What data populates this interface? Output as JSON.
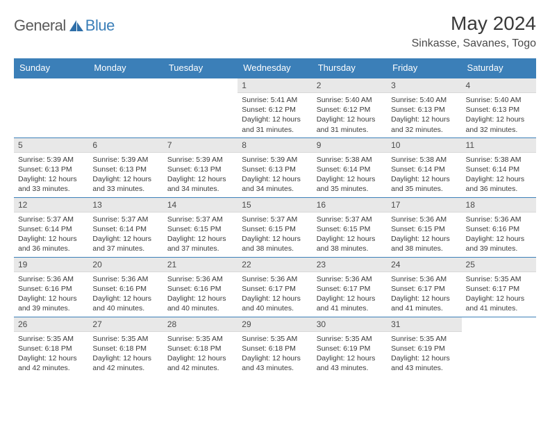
{
  "branding": {
    "logo_general": "General",
    "logo_blue": "Blue",
    "sail_fill": "#2f6fa8"
  },
  "title": {
    "month": "May 2024",
    "location": "Sinkasse, Savanes, Togo"
  },
  "colors": {
    "header_bg": "#3b7fb8",
    "header_text": "#ffffff",
    "daynum_bg": "#e8e8e8",
    "border": "#3b7fb8",
    "text": "#3a3a3a"
  },
  "day_headers": [
    "Sunday",
    "Monday",
    "Tuesday",
    "Wednesday",
    "Thursday",
    "Friday",
    "Saturday"
  ],
  "weeks": [
    [
      {
        "empty": true
      },
      {
        "empty": true
      },
      {
        "empty": true
      },
      {
        "num": "1",
        "sunrise": "5:41 AM",
        "sunset": "6:12 PM",
        "daylight": "12 hours and 31 minutes."
      },
      {
        "num": "2",
        "sunrise": "5:40 AM",
        "sunset": "6:12 PM",
        "daylight": "12 hours and 31 minutes."
      },
      {
        "num": "3",
        "sunrise": "5:40 AM",
        "sunset": "6:13 PM",
        "daylight": "12 hours and 32 minutes."
      },
      {
        "num": "4",
        "sunrise": "5:40 AM",
        "sunset": "6:13 PM",
        "daylight": "12 hours and 32 minutes."
      }
    ],
    [
      {
        "num": "5",
        "sunrise": "5:39 AM",
        "sunset": "6:13 PM",
        "daylight": "12 hours and 33 minutes."
      },
      {
        "num": "6",
        "sunrise": "5:39 AM",
        "sunset": "6:13 PM",
        "daylight": "12 hours and 33 minutes."
      },
      {
        "num": "7",
        "sunrise": "5:39 AM",
        "sunset": "6:13 PM",
        "daylight": "12 hours and 34 minutes."
      },
      {
        "num": "8",
        "sunrise": "5:39 AM",
        "sunset": "6:13 PM",
        "daylight": "12 hours and 34 minutes."
      },
      {
        "num": "9",
        "sunrise": "5:38 AM",
        "sunset": "6:14 PM",
        "daylight": "12 hours and 35 minutes."
      },
      {
        "num": "10",
        "sunrise": "5:38 AM",
        "sunset": "6:14 PM",
        "daylight": "12 hours and 35 minutes."
      },
      {
        "num": "11",
        "sunrise": "5:38 AM",
        "sunset": "6:14 PM",
        "daylight": "12 hours and 36 minutes."
      }
    ],
    [
      {
        "num": "12",
        "sunrise": "5:37 AM",
        "sunset": "6:14 PM",
        "daylight": "12 hours and 36 minutes."
      },
      {
        "num": "13",
        "sunrise": "5:37 AM",
        "sunset": "6:14 PM",
        "daylight": "12 hours and 37 minutes."
      },
      {
        "num": "14",
        "sunrise": "5:37 AM",
        "sunset": "6:15 PM",
        "daylight": "12 hours and 37 minutes."
      },
      {
        "num": "15",
        "sunrise": "5:37 AM",
        "sunset": "6:15 PM",
        "daylight": "12 hours and 38 minutes."
      },
      {
        "num": "16",
        "sunrise": "5:37 AM",
        "sunset": "6:15 PM",
        "daylight": "12 hours and 38 minutes."
      },
      {
        "num": "17",
        "sunrise": "5:36 AM",
        "sunset": "6:15 PM",
        "daylight": "12 hours and 38 minutes."
      },
      {
        "num": "18",
        "sunrise": "5:36 AM",
        "sunset": "6:16 PM",
        "daylight": "12 hours and 39 minutes."
      }
    ],
    [
      {
        "num": "19",
        "sunrise": "5:36 AM",
        "sunset": "6:16 PM",
        "daylight": "12 hours and 39 minutes."
      },
      {
        "num": "20",
        "sunrise": "5:36 AM",
        "sunset": "6:16 PM",
        "daylight": "12 hours and 40 minutes."
      },
      {
        "num": "21",
        "sunrise": "5:36 AM",
        "sunset": "6:16 PM",
        "daylight": "12 hours and 40 minutes."
      },
      {
        "num": "22",
        "sunrise": "5:36 AM",
        "sunset": "6:17 PM",
        "daylight": "12 hours and 40 minutes."
      },
      {
        "num": "23",
        "sunrise": "5:36 AM",
        "sunset": "6:17 PM",
        "daylight": "12 hours and 41 minutes."
      },
      {
        "num": "24",
        "sunrise": "5:36 AM",
        "sunset": "6:17 PM",
        "daylight": "12 hours and 41 minutes."
      },
      {
        "num": "25",
        "sunrise": "5:35 AM",
        "sunset": "6:17 PM",
        "daylight": "12 hours and 41 minutes."
      }
    ],
    [
      {
        "num": "26",
        "sunrise": "5:35 AM",
        "sunset": "6:18 PM",
        "daylight": "12 hours and 42 minutes."
      },
      {
        "num": "27",
        "sunrise": "5:35 AM",
        "sunset": "6:18 PM",
        "daylight": "12 hours and 42 minutes."
      },
      {
        "num": "28",
        "sunrise": "5:35 AM",
        "sunset": "6:18 PM",
        "daylight": "12 hours and 42 minutes."
      },
      {
        "num": "29",
        "sunrise": "5:35 AM",
        "sunset": "6:18 PM",
        "daylight": "12 hours and 43 minutes."
      },
      {
        "num": "30",
        "sunrise": "5:35 AM",
        "sunset": "6:19 PM",
        "daylight": "12 hours and 43 minutes."
      },
      {
        "num": "31",
        "sunrise": "5:35 AM",
        "sunset": "6:19 PM",
        "daylight": "12 hours and 43 minutes."
      },
      {
        "empty": true
      }
    ]
  ],
  "labels": {
    "sunrise": "Sunrise:",
    "sunset": "Sunset:",
    "daylight": "Daylight:"
  }
}
